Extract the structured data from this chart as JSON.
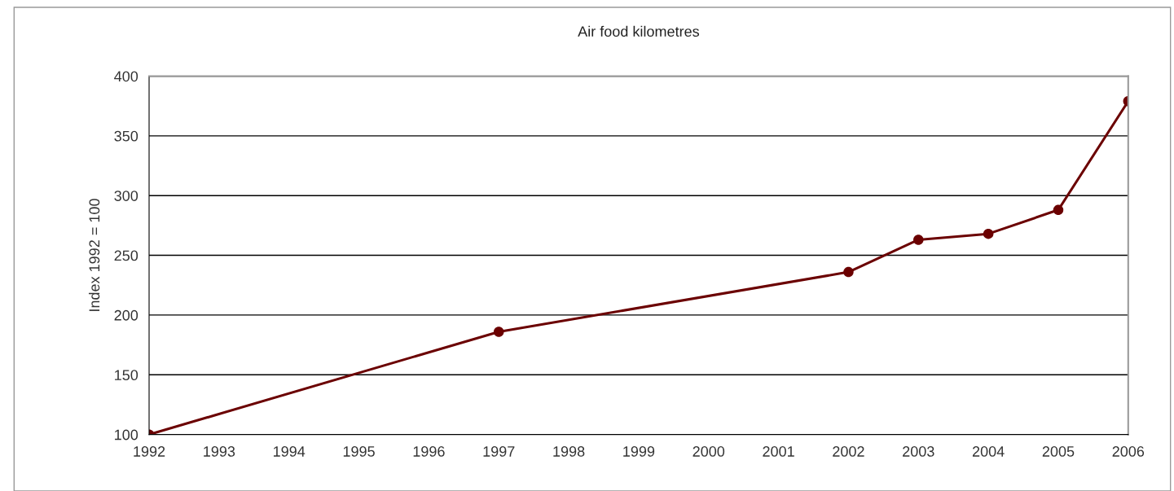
{
  "chart_data": {
    "type": "line",
    "title": "Air food kilometres",
    "ylabel": "Index 1992 = 100",
    "x": [
      1992,
      1997,
      2002,
      2003,
      2004,
      2005,
      2006
    ],
    "series": [
      {
        "color": "#6b0000",
        "values": [
          100,
          186,
          236,
          263,
          268,
          288,
          379
        ]
      }
    ],
    "xlim": [
      1992,
      2006
    ],
    "xticks": [
      1992,
      1993,
      1994,
      1995,
      1996,
      1997,
      1998,
      1999,
      2000,
      2001,
      2002,
      2003,
      2004,
      2005,
      2006
    ],
    "ylim": [
      100,
      400
    ],
    "yticks": [
      100,
      150,
      200,
      250,
      300,
      350,
      400
    ],
    "grid": "y",
    "marker": "circle",
    "line_style": "solid"
  }
}
